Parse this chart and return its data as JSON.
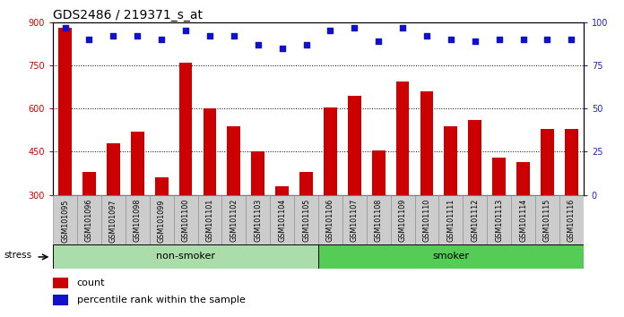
{
  "title": "GDS2486 / 219371_s_at",
  "categories": [
    "GSM101095",
    "GSM101096",
    "GSM101097",
    "GSM101098",
    "GSM101099",
    "GSM101100",
    "GSM101101",
    "GSM101102",
    "GSM101103",
    "GSM101104",
    "GSM101105",
    "GSM101106",
    "GSM101107",
    "GSM101108",
    "GSM101109",
    "GSM101110",
    "GSM101111",
    "GSM101112",
    "GSM101113",
    "GSM101114",
    "GSM101115",
    "GSM101116"
  ],
  "bar_values": [
    880,
    380,
    480,
    520,
    360,
    760,
    600,
    540,
    450,
    330,
    380,
    605,
    645,
    455,
    695,
    660,
    540,
    560,
    430,
    415,
    530,
    530
  ],
  "percentile_values": [
    97,
    90,
    92,
    92,
    90,
    95,
    92,
    92,
    87,
    85,
    87,
    95,
    97,
    89,
    97,
    92,
    90,
    89,
    90,
    90,
    90,
    90
  ],
  "bar_color": "#cc0000",
  "dot_color": "#1111cc",
  "ylim_left": [
    300,
    900
  ],
  "yticks_left": [
    300,
    450,
    600,
    750,
    900
  ],
  "yticks_right": [
    0,
    25,
    50,
    75,
    100
  ],
  "grid_values": [
    450,
    600,
    750
  ],
  "non_smoker_count": 11,
  "non_smoker_color": "#aaddaa",
  "smoker_color": "#55cc55",
  "xtick_bg_color": "#cccccc",
  "stress_label": "stress",
  "non_smoker_label": "non-smoker",
  "smoker_label": "smoker",
  "count_label": "count",
  "percentile_label": "percentile rank within the sample",
  "title_fontsize": 10,
  "tick_fontsize": 7,
  "right_axis_color": "#2222bb",
  "left_axis_color": "#cc0000"
}
